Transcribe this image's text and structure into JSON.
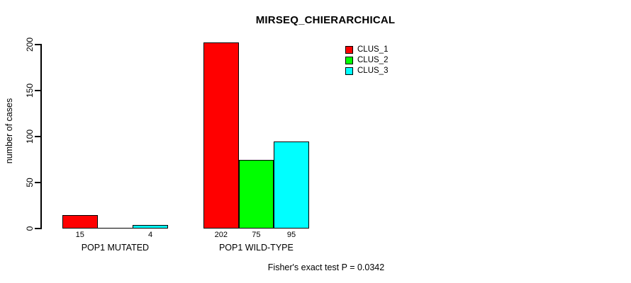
{
  "figure": {
    "title": "MIRSEQ_CHIERARCHICAL",
    "y_axis_label": "number of cases",
    "footer_annotation": "Fisher's exact test P = 0.0342"
  },
  "legend": {
    "position": "top-right",
    "items": [
      {
        "label": "CLUS_1",
        "color": "#ff0000"
      },
      {
        "label": "CLUS_2",
        "color": "#00ff00"
      },
      {
        "label": "CLUS_3",
        "color": "#00ffff"
      }
    ]
  },
  "chart_data": {
    "type": "bar",
    "title": "MIRSEQ_CHIERARCHICAL",
    "categories": [
      "POP1 MUTATED",
      "POP1 WILD-TYPE"
    ],
    "series": [
      {
        "name": "CLUS_1",
        "color": "#ff0000",
        "values": [
          15,
          202
        ]
      },
      {
        "name": "CLUS_2",
        "color": "#00ff00",
        "values": [
          0,
          75
        ]
      },
      {
        "name": "CLUS_3",
        "color": "#00ffff",
        "values": [
          4,
          95
        ]
      }
    ],
    "value_labels": [
      [
        "15",
        "",
        "4"
      ],
      [
        "202",
        "75",
        "95"
      ]
    ],
    "xlabel": "",
    "ylabel": "number of cases",
    "ylim": [
      0,
      200
    ],
    "y_ticks": [
      0,
      50,
      100,
      150,
      200
    ],
    "grid": false,
    "legend_position": "top-right",
    "annotation": "Fisher's exact test P = 0.0342"
  }
}
